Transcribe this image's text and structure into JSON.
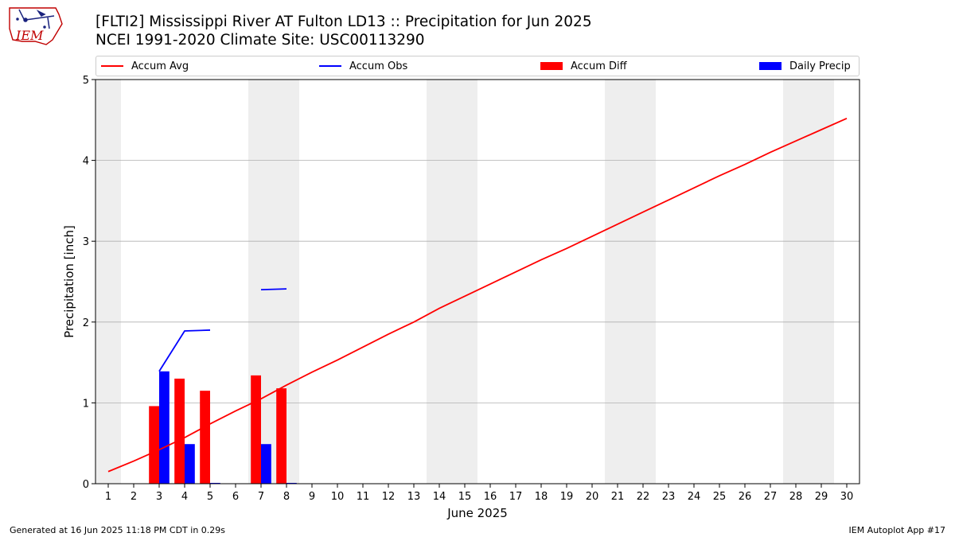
{
  "header": {
    "title_line1": "[FLTI2] Mississippi River  AT Fulton LD13 :: Precipitation for Jun 2025",
    "title_line2": "NCEI 1991-2020 Climate Site: USC00113290",
    "logo_text": "IEM"
  },
  "legend": [
    {
      "label": "Accum Avg",
      "kind": "line",
      "color": "#ff0000"
    },
    {
      "label": "Accum Obs",
      "kind": "line",
      "color": "#0000ff"
    },
    {
      "label": "Accum Diff",
      "kind": "box",
      "color": "#ff0000"
    },
    {
      "label": "Daily Precip",
      "kind": "box",
      "color": "#0000ff"
    }
  ],
  "footer": {
    "left": "Generated at 16 Jun 2025 11:18 PM CDT in 0.29s",
    "right": "IEM Autoplot App #17"
  },
  "chart_data": {
    "type": "bar",
    "xlabel": "June 2025",
    "ylabel": "Precipitation [inch]",
    "xlim": [
      0.5,
      30.5
    ],
    "ylim": [
      0,
      5
    ],
    "yticks": [
      0,
      1,
      2,
      3,
      4,
      5
    ],
    "x": [
      1,
      2,
      3,
      4,
      5,
      6,
      7,
      8,
      9,
      10,
      11,
      12,
      13,
      14,
      15,
      16,
      17,
      18,
      19,
      20,
      21,
      22,
      23,
      24,
      25,
      26,
      27,
      28,
      29,
      30
    ],
    "grid": "horizontal",
    "weekend_shading": [
      [
        0.5,
        1.5
      ],
      [
        6.5,
        8.5
      ],
      [
        13.5,
        15.5
      ],
      [
        20.5,
        22.5
      ],
      [
        27.5,
        29.5
      ]
    ],
    "series": [
      {
        "name": "Accum Avg",
        "type": "line",
        "color": "#ff0000",
        "values": [
          0.15,
          0.28,
          0.42,
          0.57,
          0.74,
          0.9,
          1.05,
          1.22,
          1.38,
          1.53,
          1.69,
          1.85,
          2.0,
          2.17,
          2.32,
          2.47,
          2.62,
          2.77,
          2.91,
          3.06,
          3.21,
          3.36,
          3.51,
          3.66,
          3.81,
          3.95,
          4.1,
          4.24,
          4.38,
          4.52
        ]
      },
      {
        "name": "Accum Obs",
        "type": "line",
        "color": "#0000ff",
        "segments": [
          [
            [
              3,
              1.39
            ],
            [
              4,
              1.89
            ],
            [
              5,
              1.9
            ]
          ],
          [
            [
              7,
              2.4
            ],
            [
              8,
              2.41
            ]
          ]
        ]
      },
      {
        "name": "Accum Diff",
        "type": "bar",
        "color": "#ff0000",
        "values": {
          "3": 0.96,
          "4": 1.3,
          "5": 1.15,
          "7": 1.34,
          "8": 1.18
        }
      },
      {
        "name": "Daily Precip",
        "type": "bar",
        "color": "#0000ff",
        "values": {
          "3": 1.39,
          "4": 0.49,
          "5": 0.01,
          "7": 0.49,
          "8": 0.01
        }
      }
    ]
  }
}
